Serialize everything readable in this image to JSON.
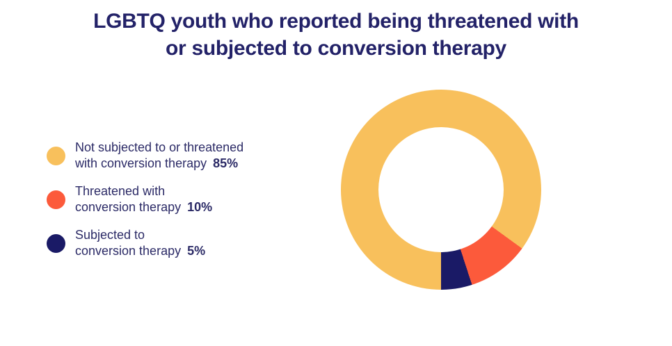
{
  "title": {
    "lines": [
      "LGBTQ youth who reported being threatened with",
      "or subjected to conversion therapy"
    ],
    "color": "#232268"
  },
  "legend": {
    "items": [
      {
        "label_lines": [
          "Not subjected to or threatened",
          "with conversion therapy"
        ],
        "value": "85%",
        "color": "#F8C05C"
      },
      {
        "label_lines": [
          "Threatened with",
          "conversion therapy"
        ],
        "value": "10%",
        "color": "#FC5A3B"
      },
      {
        "label_lines": [
          "Subjected to",
          "conversion therapy"
        ],
        "value": "5%",
        "color": "#1A1A66"
      }
    ]
  },
  "chart_data": {
    "type": "pie",
    "subtype": "donut",
    "title": "LGBTQ youth who reported being threatened with or subjected to conversion therapy",
    "categories": [
      "Not subjected to or threatened with conversion therapy",
      "Threatened with conversion therapy",
      "Subjected to conversion therapy"
    ],
    "values": [
      85,
      10,
      5
    ],
    "unit": "%",
    "colors": [
      "#F8C05C",
      "#FC5A3B",
      "#1A1A66"
    ],
    "start_angle_deg": 180,
    "direction": "clockwise",
    "hole_ratio": 0.625,
    "hole_color": "#ffffff",
    "legend_position": "left",
    "background": "#ffffff",
    "text_color": "#2B2A66"
  }
}
